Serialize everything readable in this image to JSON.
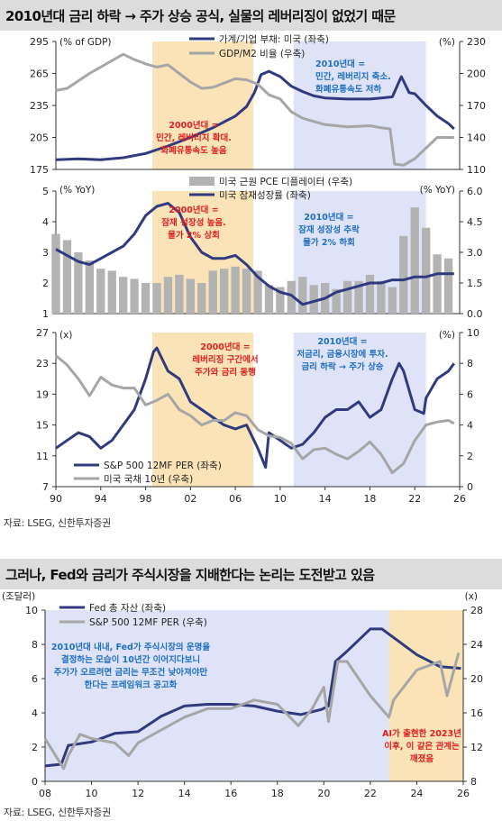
{
  "section1": {
    "title": "2010년대 금리 하락 → 주가 상승 공식, 실물의 레버리징이 없었기 때문",
    "source": "자료: LSEG, 신한투자증권",
    "x_ticks": [
      "90",
      "94",
      "98",
      "02",
      "06",
      "10",
      "14",
      "18",
      "22",
      "26"
    ]
  },
  "section2": {
    "title": "그러나, Fed와 금리가 주식시장을 지배한다는 논리는 도전받고 있음",
    "source": "자료: LSEG, 신한투자증권",
    "x_ticks": [
      "08",
      "10",
      "12",
      "14",
      "16",
      "18",
      "20",
      "22",
      "24",
      "26"
    ]
  },
  "chart_data": [
    {
      "type": "line",
      "xlim": [
        1990,
        2026
      ],
      "left_axis": {
        "unit": "(% of GDP)",
        "ylim": [
          175,
          295
        ],
        "ticks": [
          175,
          205,
          235,
          265,
          295
        ]
      },
      "right_axis": {
        "unit": "(%)",
        "ylim": [
          110,
          230
        ],
        "ticks": [
          110,
          140,
          170,
          200,
          230
        ]
      },
      "shaded": [
        {
          "from": 1998.6,
          "to": 2007.6,
          "color": "#fbe3b8"
        },
        {
          "from": 2011.2,
          "to": 2023.0,
          "color": "#dfe3f7"
        }
      ],
      "series": [
        {
          "name": "가계/기업 부채: 미국 (좌축)",
          "axis": "left",
          "color": "#2f3b7e",
          "x": [
            1990,
            1992,
            1994,
            1996,
            1998,
            2000,
            2002,
            2004,
            2006,
            2007,
            2007.7,
            2008.3,
            2009,
            2010,
            2011,
            2012,
            2013,
            2014,
            2016,
            2017,
            2018,
            2019,
            2020,
            2020.8,
            2021.5,
            2022,
            2023,
            2024,
            2025,
            2025.5
          ],
          "y": [
            184,
            185,
            184,
            186,
            190,
            197,
            205,
            214,
            225,
            234,
            247,
            264,
            267,
            262,
            253,
            248,
            244,
            242,
            241,
            241,
            241,
            242,
            243,
            262,
            247,
            246,
            235,
            225,
            218,
            213
          ]
        },
        {
          "name": "GDP/M2 비율 (우축)",
          "axis": "right",
          "color": "#a6a6a6",
          "x": [
            1990,
            1991,
            1993,
            1995,
            1996,
            1997,
            1998,
            1999,
            2000,
            2001,
            2002,
            2003,
            2004,
            2006,
            2007,
            2008,
            2009,
            2010,
            2011,
            2012,
            2014,
            2016,
            2018,
            2019,
            2019.8,
            2020.2,
            2021,
            2022,
            2023,
            2024,
            2025.5
          ],
          "y": [
            184,
            186,
            200,
            212,
            218,
            213,
            209,
            206,
            208,
            200,
            192,
            186,
            187,
            195,
            194,
            190,
            180,
            176,
            164,
            158,
            152,
            150,
            151,
            149,
            148,
            115,
            114,
            120,
            130,
            140,
            140
          ]
        }
      ],
      "annotations": [
        {
          "text": "2010년대 =\n민간, 레버리지 축소.\n화폐유통속도 저하",
          "color": "#1f6fc2"
        },
        {
          "text": "2000년대 =\n민간, 레버리지 확대.\n화폐유통속도 높음",
          "color": "#e02020"
        }
      ]
    },
    {
      "type": "bar+line",
      "xlim": [
        1990,
        2026
      ],
      "left_axis": {
        "unit": "(% YoY)",
        "ylim": [
          1,
          5
        ],
        "ticks": [
          1,
          2,
          3,
          4,
          5
        ]
      },
      "right_axis": {
        "unit": "(% YoY)",
        "ylim": [
          0.0,
          6.0
        ],
        "ticks": [
          "0.0",
          "1.5",
          "3.0",
          "4.5",
          "6.0"
        ]
      },
      "shaded": [
        {
          "from": 1998.6,
          "to": 2007.6,
          "color": "#fbe3b8"
        },
        {
          "from": 2011.2,
          "to": 2023.0,
          "color": "#dfe3f7"
        }
      ],
      "series": [
        {
          "name": "미국 근원 PCE 디플레이터 (우축)",
          "axis": "right",
          "kind": "bar",
          "color": "#b3b3b3",
          "x": [
            1990,
            1991,
            1992,
            1993,
            1994,
            1995,
            1996,
            1997,
            1998,
            1999,
            2000,
            2001,
            2002,
            2003,
            2004,
            2005,
            2006,
            2007,
            2008,
            2009,
            2010,
            2011,
            2012,
            2013,
            2014,
            2015,
            2016,
            2017,
            2018,
            2019,
            2020,
            2021,
            2022,
            2023,
            2024,
            2025
          ],
          "y": [
            3.9,
            3.6,
            3.0,
            2.6,
            2.2,
            2.1,
            1.8,
            1.7,
            1.5,
            1.5,
            1.8,
            1.9,
            1.7,
            1.5,
            2.1,
            2.2,
            2.3,
            2.2,
            2.1,
            1.4,
            1.3,
            1.6,
            1.8,
            1.4,
            1.5,
            1.2,
            1.6,
            1.6,
            1.9,
            1.6,
            1.3,
            3.8,
            5.2,
            4.2,
            2.9,
            2.7
          ]
        },
        {
          "name": "미국 잠재성장률 (좌축)",
          "axis": "left",
          "color": "#2f3b7e",
          "x": [
            1990,
            1991,
            1992,
            1993,
            1994,
            1995,
            1996,
            1997,
            1998,
            1999,
            2000,
            2001,
            2002,
            2003,
            2004,
            2005,
            2006,
            2007,
            2008,
            2009,
            2010,
            2011,
            2012,
            2013,
            2014,
            2015,
            2016,
            2017,
            2018,
            2019,
            2020,
            2021,
            2022,
            2023,
            2024,
            2025,
            2025.5
          ],
          "y": [
            3.1,
            2.9,
            2.7,
            2.6,
            2.8,
            3.0,
            3.2,
            3.6,
            4.2,
            4.5,
            4.6,
            4.3,
            3.5,
            3.0,
            2.8,
            2.8,
            2.9,
            2.6,
            2.2,
            1.9,
            1.7,
            1.6,
            1.3,
            1.4,
            1.5,
            1.7,
            1.8,
            1.9,
            2.0,
            2.0,
            2.1,
            2.1,
            2.2,
            2.2,
            2.3,
            2.3,
            2.3
          ]
        }
      ],
      "annotations": [
        {
          "text": "2000년대 =\n잠재 성장성 높음.\n물가 2% 상회",
          "color": "#e02020"
        },
        {
          "text": "2010년대 =\n잠재 성장성 추락\n물가 2% 하회",
          "color": "#1f6fc2"
        }
      ]
    },
    {
      "type": "line",
      "xlim": [
        1990,
        2026
      ],
      "left_axis": {
        "unit": "(x)",
        "ylim": [
          7,
          27
        ],
        "ticks": [
          7,
          11,
          15,
          19,
          23,
          27
        ]
      },
      "right_axis": {
        "unit": "(%)",
        "ylim": [
          0,
          10
        ],
        "ticks": [
          0,
          2,
          4,
          6,
          8,
          10
        ]
      },
      "shaded": [
        {
          "from": 1998.6,
          "to": 2007.6,
          "color": "#fbe3b8"
        },
        {
          "from": 2011.2,
          "to": 2023.0,
          "color": "#dfe3f7"
        }
      ],
      "series": [
        {
          "name": "S&P 500 12MF PER (좌축)",
          "axis": "left",
          "color": "#2f3b7e",
          "x": [
            1990,
            1991,
            1992,
            1993,
            1994,
            1995,
            1996,
            1997,
            1998,
            1998.7,
            1999,
            2000,
            2001,
            2002,
            2003,
            2004,
            2005,
            2006,
            2007,
            2008,
            2008.7,
            2009,
            2010,
            2011,
            2012,
            2013,
            2014,
            2015,
            2016,
            2017,
            2018,
            2019,
            2020,
            2020.6,
            2021,
            2022,
            2022.8,
            2023,
            2024,
            2025,
            2025.5
          ],
          "y": [
            12,
            13,
            14,
            13.5,
            12,
            13,
            15,
            17,
            21,
            24.5,
            25,
            22,
            21,
            18,
            17,
            16,
            15,
            14.5,
            15,
            12,
            9.5,
            14,
            13,
            12,
            12.5,
            14,
            16,
            17,
            17,
            18,
            16,
            17,
            21,
            23,
            22,
            17,
            16.5,
            18.5,
            21,
            22,
            23
          ]
        },
        {
          "name": "미국 국채 10년 (우축)",
          "axis": "right",
          "color": "#a6a6a6",
          "x": [
            1990,
            1991,
            1992,
            1993,
            1994,
            1995,
            1996,
            1997,
            1998,
            1999,
            2000,
            2001,
            2002,
            2003,
            2004,
            2005,
            2006,
            2007,
            2008,
            2009,
            2010,
            2011,
            2012,
            2013,
            2014,
            2015,
            2016,
            2017,
            2018,
            2019,
            2020,
            2021,
            2022,
            2023,
            2024,
            2025,
            2025.5
          ],
          "y": [
            8.5,
            7.9,
            7.0,
            5.9,
            7.1,
            6.6,
            6.4,
            6.4,
            5.3,
            5.6,
            6.0,
            5.0,
            4.6,
            4.0,
            4.3,
            4.3,
            4.8,
            4.6,
            3.7,
            3.3,
            3.2,
            2.8,
            1.8,
            2.4,
            2.5,
            2.1,
            1.8,
            2.3,
            2.9,
            2.1,
            0.9,
            1.5,
            3.0,
            4.0,
            4.2,
            4.3,
            4.1
          ]
        }
      ],
      "annotations": [
        {
          "text": "2000년대 =\n레버리징 구간에서\n주가와 금리 동행",
          "color": "#e02020"
        },
        {
          "text": "2010년대 =\n저금리, 금융시장에 투자.\n금리 하락 → 주가 상승",
          "color": "#1f6fc2"
        }
      ]
    },
    {
      "type": "line",
      "xlim": [
        2008,
        2026
      ],
      "left_axis": {
        "unit": "(조달러)",
        "ylim": [
          0,
          10
        ],
        "ticks": [
          0,
          2,
          4,
          6,
          8,
          10
        ]
      },
      "right_axis": {
        "unit": "(x)",
        "ylim": [
          8,
          28
        ],
        "ticks": [
          8,
          12,
          16,
          20,
          24,
          28
        ]
      },
      "shaded": [
        {
          "from": 2008,
          "to": 2022.8,
          "color": "#dfe3f7"
        },
        {
          "from": 2022.8,
          "to": 2026,
          "color": "#fbe3b8"
        }
      ],
      "series": [
        {
          "name": "Fed 총 자산 (좌축)",
          "axis": "left",
          "color": "#2f3b7e",
          "x": [
            2008,
            2008.7,
            2009,
            2010,
            2011,
            2012,
            2013,
            2014,
            2015,
            2016,
            2017,
            2018,
            2019,
            2019.9,
            2020.2,
            2020.5,
            2021,
            2022,
            2022.5,
            2023,
            2024,
            2025,
            2025.9
          ],
          "y": [
            0.9,
            1.0,
            2.1,
            2.3,
            2.8,
            2.9,
            3.8,
            4.4,
            4.5,
            4.5,
            4.4,
            4.1,
            3.9,
            4.2,
            4.4,
            7.0,
            7.6,
            8.9,
            8.9,
            8.4,
            7.4,
            6.7,
            6.6
          ]
        },
        {
          "name": "S&P 500 12MF PER (우축)",
          "axis": "right",
          "color": "#a6a6a6",
          "x": [
            2008,
            2008.8,
            2009,
            2009.5,
            2010,
            2011,
            2011.6,
            2012,
            2013,
            2014,
            2015,
            2016,
            2017,
            2018,
            2018.9,
            2019.5,
            2020,
            2020.2,
            2020.6,
            2021,
            2022,
            2022.8,
            2023,
            2024,
            2025,
            2025.3,
            2025.8
          ],
          "y": [
            13,
            9.5,
            11,
            13.5,
            13,
            12.5,
            11,
            12.5,
            14,
            15.5,
            16.5,
            16.5,
            17.5,
            17,
            14.5,
            16.5,
            19,
            15,
            22,
            22,
            18,
            15.5,
            17.5,
            21,
            22,
            18,
            23
          ]
        }
      ],
      "annotations": [
        {
          "text": "2010년대 내내, Fed가 주식시장의 운명을\n결정하는 모습이 10년간 이어지다보니\n주가가 오르려면 금리는 무조건 낮아져야만\n한다는 프레임워크 공고화",
          "color": "#1f6fc2"
        },
        {
          "text": "AI가 출현한 2023년\n이후, 이 같은 관계는\n깨졌음",
          "color": "#e02020"
        }
      ]
    }
  ]
}
